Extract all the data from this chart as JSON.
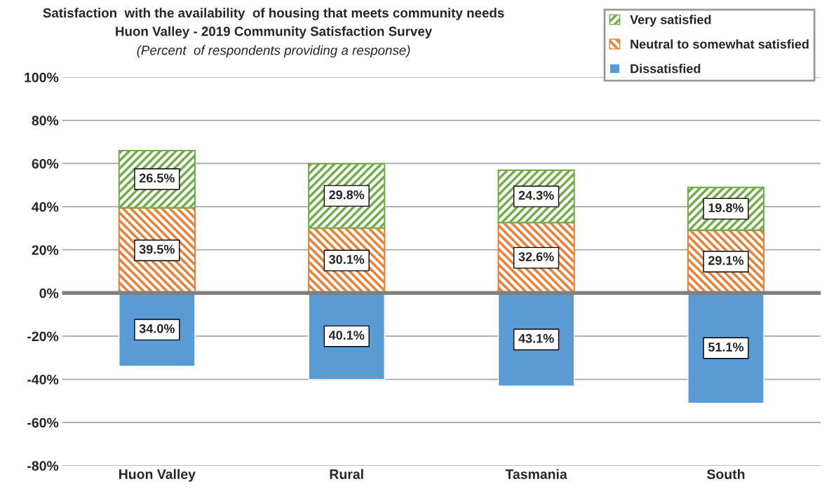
{
  "chart_data": {
    "type": "bar",
    "stacked": true,
    "title": "Satisfaction  with the availability  of housing that meets community needs",
    "subtitle": "Huon Valley - 2019 Community Satisfaction Survey",
    "annotations": [
      "(Percent  of respondents providing a response)"
    ],
    "categories": [
      "Huon Valley",
      "Rural",
      "Tasmania",
      "South"
    ],
    "series": [
      {
        "name": "Dissatisfied",
        "color": "#5b9bd5",
        "base": [
          -34.0,
          -40.1,
          -43.1,
          -51.1
        ],
        "values": [
          34.0,
          40.1,
          43.1,
          51.1
        ],
        "value_labels": [
          "34.0%",
          "40.1%",
          "43.1%",
          "51.1%"
        ]
      },
      {
        "name": "Neutral to somewhat satisfied",
        "color": "#ed7d31",
        "values": [
          39.5,
          30.1,
          32.6,
          29.1
        ],
        "value_labels": [
          "39.5%",
          "30.1%",
          "32.6%",
          "29.1%"
        ]
      },
      {
        "name": "Very satisfied",
        "color": "#70ad47",
        "values": [
          26.5,
          29.8,
          24.3,
          19.8
        ],
        "value_labels": [
          "26.5%",
          "29.8%",
          "24.3%",
          "19.8%"
        ]
      }
    ],
    "ylim": [
      -80,
      100
    ],
    "yticks": [
      {
        "value": -80,
        "label": "-80%"
      },
      {
        "value": -60,
        "label": "-60%"
      },
      {
        "value": -40,
        "label": "-40%"
      },
      {
        "value": -20,
        "label": "-20%"
      },
      {
        "value": 0,
        "label": "0%"
      },
      {
        "value": 20,
        "label": "20%"
      },
      {
        "value": 40,
        "label": "40%"
      },
      {
        "value": 60,
        "label": "60%"
      },
      {
        "value": 80,
        "label": "80%"
      },
      {
        "value": 100,
        "label": "100%"
      }
    ],
    "ref_lines": [
      {
        "axis": "y",
        "value": 0,
        "color": "#808080"
      }
    ],
    "grid": "y",
    "legend": "top right"
  }
}
